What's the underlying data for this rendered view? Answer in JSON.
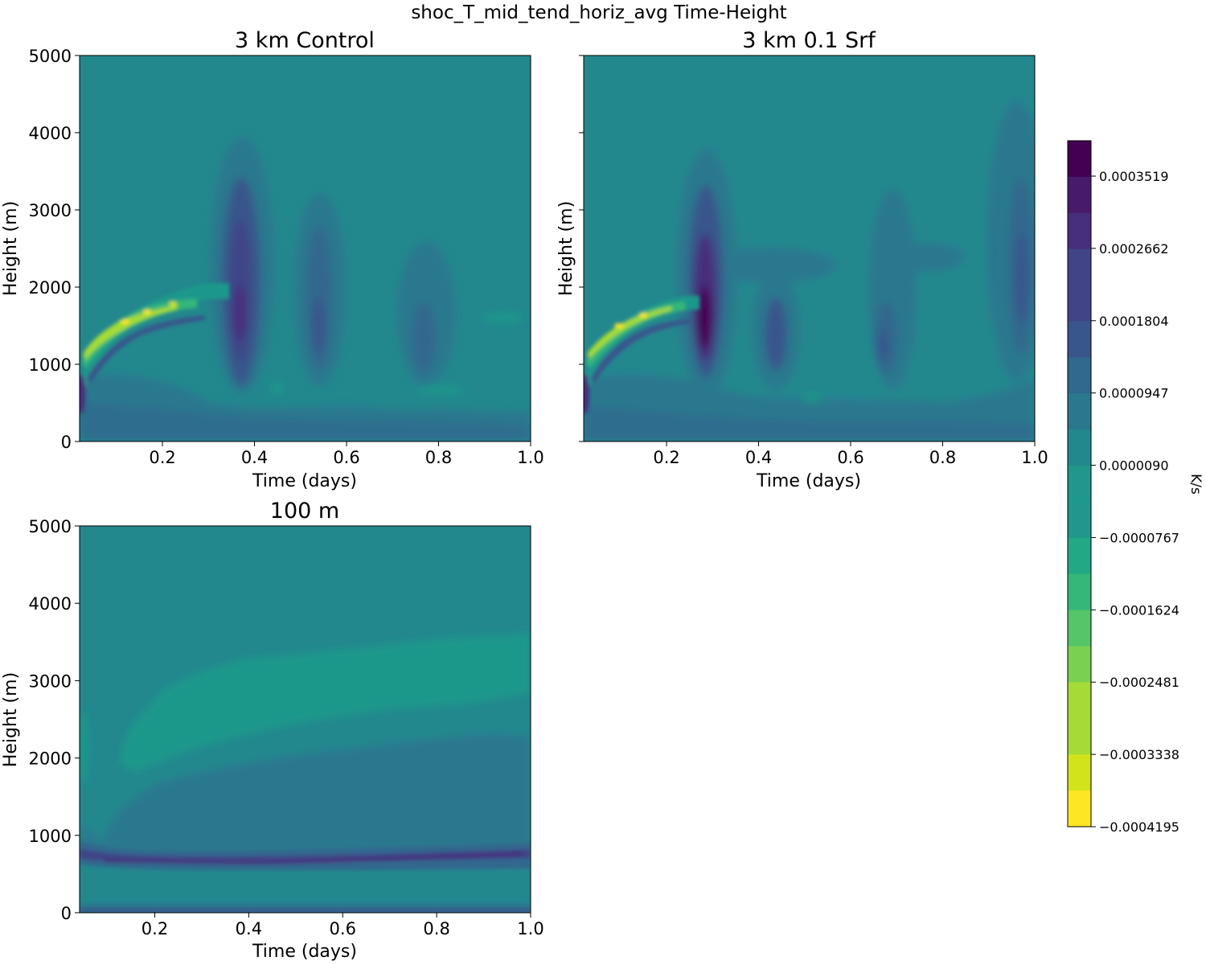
{
  "figure": {
    "title": "shoc_T_mid_tend_horiz_avg Time-Height"
  },
  "colorbar": {
    "label": "K/s",
    "tick_labels": [
      "0.0003519",
      "0.0002662",
      "0.0001804",
      "0.0000947",
      "0.0000090",
      "−0.0000767",
      "−0.0001624",
      "−0.0002481",
      "−0.0003338",
      "−0.0004195"
    ],
    "colors": [
      "#440154",
      "#481a6c",
      "#472f7d",
      "#414487",
      "#39568c",
      "#31688e",
      "#2a788e",
      "#23888e",
      "#1f988b",
      "#22a884",
      "#35b779",
      "#54c568",
      "#7ad151",
      "#a5db36",
      "#d2e21b",
      "#fde725"
    ]
  },
  "chart_data": [
    {
      "type": "contourf",
      "title": "3 km Control",
      "xlabel": "Time (days)",
      "ylabel": "Height (m)",
      "xlim": [
        0.02,
        1.0
      ],
      "ylim": [
        0,
        5000
      ],
      "x_ticks": [
        0.2,
        0.4,
        0.6,
        0.8,
        1.0
      ],
      "x_tick_labels": [
        "0.2",
        "0.4",
        "0.6",
        "0.8",
        "1.0"
      ],
      "y_ticks": [
        0,
        1000,
        2000,
        3000,
        4000,
        5000
      ],
      "y_tick_labels": [
        "0",
        "1000",
        "2000",
        "3000",
        "4000",
        "5000"
      ],
      "colorbar_range": [
        -0.0004195,
        0.0003519
      ],
      "background_value": 9e-06,
      "features": [
        {
          "kind": "column",
          "time": 0.37,
          "z_low": 900,
          "z_high": 3700,
          "peak": 0.00028
        },
        {
          "kind": "column",
          "time": 0.54,
          "z_low": 900,
          "z_high": 3100,
          "peak": 0.00018
        },
        {
          "kind": "column",
          "time": 0.78,
          "z_low": 800,
          "z_high": 2500,
          "peak": 0.00011
        },
        {
          "kind": "rising_band",
          "t_start": 0.02,
          "t_end": 0.28,
          "z_start": 1100,
          "z_end": 1900,
          "peak": -0.00035
        }
      ]
    },
    {
      "type": "contourf",
      "title": "3 km 0.1 Srf",
      "xlabel": "Time (days)",
      "ylabel": "Height (m)",
      "xlim": [
        0.02,
        1.0
      ],
      "ylim": [
        0,
        5000
      ],
      "x_ticks": [
        0.2,
        0.4,
        0.6,
        0.8,
        1.0
      ],
      "x_tick_labels": [
        "0.2",
        "0.4",
        "0.6",
        "0.8",
        "1.0"
      ],
      "y_ticks": [
        0,
        1000,
        2000,
        3000,
        4000,
        5000
      ],
      "colorbar_range": [
        -0.0004195,
        0.0003519
      ],
      "background_value": 9e-06,
      "features": [
        {
          "kind": "column",
          "time": 0.28,
          "z_low": 800,
          "z_high": 3500,
          "peak": 0.00035
        },
        {
          "kind": "column",
          "time": 0.44,
          "z_low": 900,
          "z_high": 2200,
          "peak": 0.00017
        },
        {
          "kind": "column",
          "time": 0.68,
          "z_low": 900,
          "z_high": 2800,
          "peak": 0.00016
        },
        {
          "kind": "column",
          "time": 0.97,
          "z_low": 900,
          "z_high": 4300,
          "peak": 0.00019
        },
        {
          "kind": "rising_band",
          "t_start": 0.02,
          "t_end": 0.22,
          "z_start": 1100,
          "z_end": 1800,
          "peak": -0.00035
        }
      ]
    },
    {
      "type": "contourf",
      "title": "100 m",
      "xlabel": "Time (days)",
      "ylabel": "Height (m)",
      "xlim": [
        0.04,
        1.0
      ],
      "ylim": [
        0,
        5000
      ],
      "x_ticks": [
        0.2,
        0.4,
        0.6,
        0.8,
        1.0
      ],
      "x_tick_labels": [
        "0.2",
        "0.4",
        "0.6",
        "0.8",
        "1.0"
      ],
      "y_ticks": [
        0,
        1000,
        2000,
        3000,
        4000,
        5000
      ],
      "y_tick_labels": [
        "0",
        "1000",
        "2000",
        "3000",
        "4000",
        "5000"
      ],
      "colorbar_range": [
        -0.0004195,
        0.0003519
      ],
      "background_value": 9e-06,
      "features": [
        {
          "kind": "layer",
          "t_start": 0.1,
          "t_end": 1.0,
          "z_low": 1800,
          "z_high": 3500,
          "value": -6e-05
        },
        {
          "kind": "layer",
          "t_start": 0.1,
          "t_end": 1.0,
          "z_low": 800,
          "z_high": 2400,
          "value": 6e-05
        },
        {
          "kind": "thin_layer",
          "t_start": 0.04,
          "t_end": 1.0,
          "z": 700,
          "value": 0.00018
        },
        {
          "kind": "thin_layer",
          "t_start": 0.04,
          "t_end": 1.0,
          "z": 50,
          "value": 9e-05
        }
      ]
    }
  ]
}
